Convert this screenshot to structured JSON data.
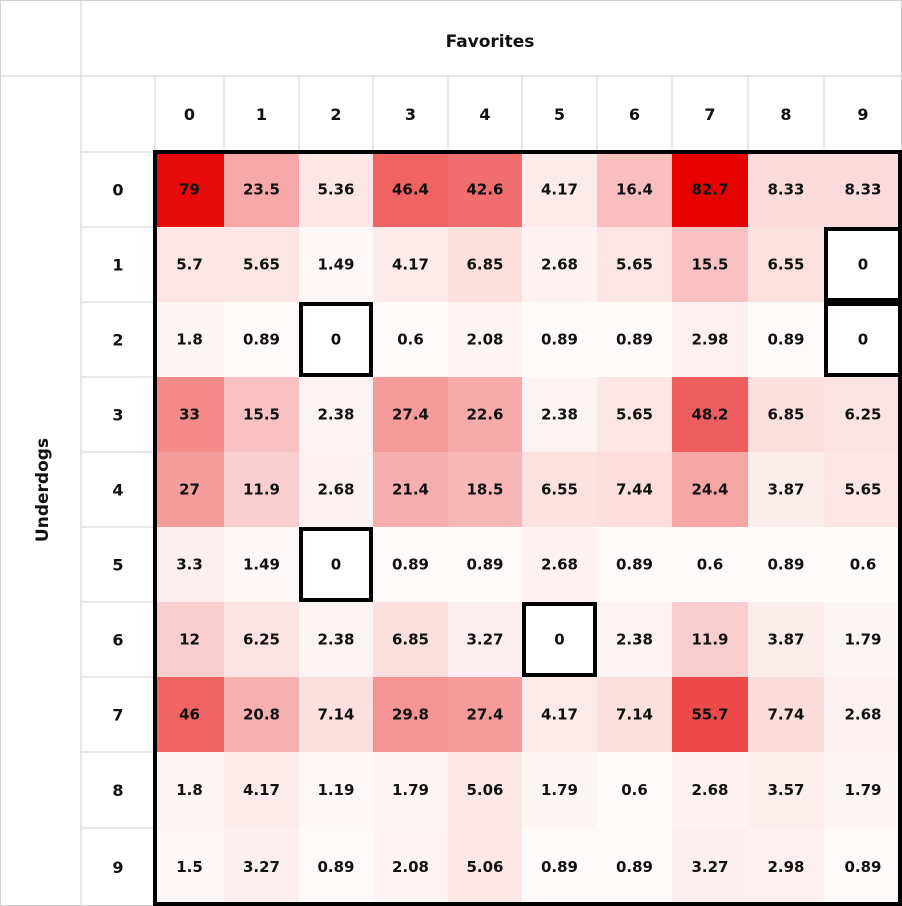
{
  "chart_data": {
    "type": "heatmap",
    "title": "",
    "xlabel": "Favorites",
    "ylabel": "Underdogs",
    "x_categories": [
      "0",
      "1",
      "2",
      "3",
      "4",
      "5",
      "6",
      "7",
      "8",
      "9"
    ],
    "y_categories": [
      "0",
      "1",
      "2",
      "3",
      "4",
      "5",
      "6",
      "7",
      "8",
      "9"
    ],
    "values": [
      [
        "79",
        "23.5",
        "5.36",
        "46.4",
        "42.6",
        "4.17",
        "16.4",
        "82.7",
        "8.33",
        "8.33"
      ],
      [
        "5.7",
        "5.65",
        "1.49",
        "4.17",
        "6.85",
        "2.68",
        "5.65",
        "15.5",
        "6.55",
        "0"
      ],
      [
        "1.8",
        "0.89",
        "0",
        "0.6",
        "2.08",
        "0.89",
        "0.89",
        "2.98",
        "0.89",
        "0"
      ],
      [
        "33",
        "15.5",
        "2.38",
        "27.4",
        "22.6",
        "2.38",
        "5.65",
        "48.2",
        "6.85",
        "6.25"
      ],
      [
        "27",
        "11.9",
        "2.68",
        "21.4",
        "18.5",
        "6.55",
        "7.44",
        "24.4",
        "3.87",
        "5.65"
      ],
      [
        "3.3",
        "1.49",
        "0",
        "0.89",
        "0.89",
        "2.68",
        "0.89",
        "0.6",
        "0.89",
        "0.6"
      ],
      [
        "12",
        "6.25",
        "2.38",
        "6.85",
        "3.27",
        "0",
        "2.38",
        "11.9",
        "3.87",
        "1.79"
      ],
      [
        "46",
        "20.8",
        "7.14",
        "29.8",
        "27.4",
        "4.17",
        "7.14",
        "55.7",
        "7.74",
        "2.68"
      ],
      [
        "1.8",
        "4.17",
        "1.19",
        "1.79",
        "5.06",
        "1.79",
        "0.6",
        "2.68",
        "3.57",
        "1.79"
      ],
      [
        "1.5",
        "3.27",
        "0.89",
        "2.08",
        "5.06",
        "0.89",
        "0.89",
        "3.27",
        "2.98",
        "0.89"
      ]
    ],
    "color_scale": {
      "low": "#ffffff",
      "high": "#e60000",
      "max_value": 82.7
    },
    "zero_cells_outlined": true
  }
}
